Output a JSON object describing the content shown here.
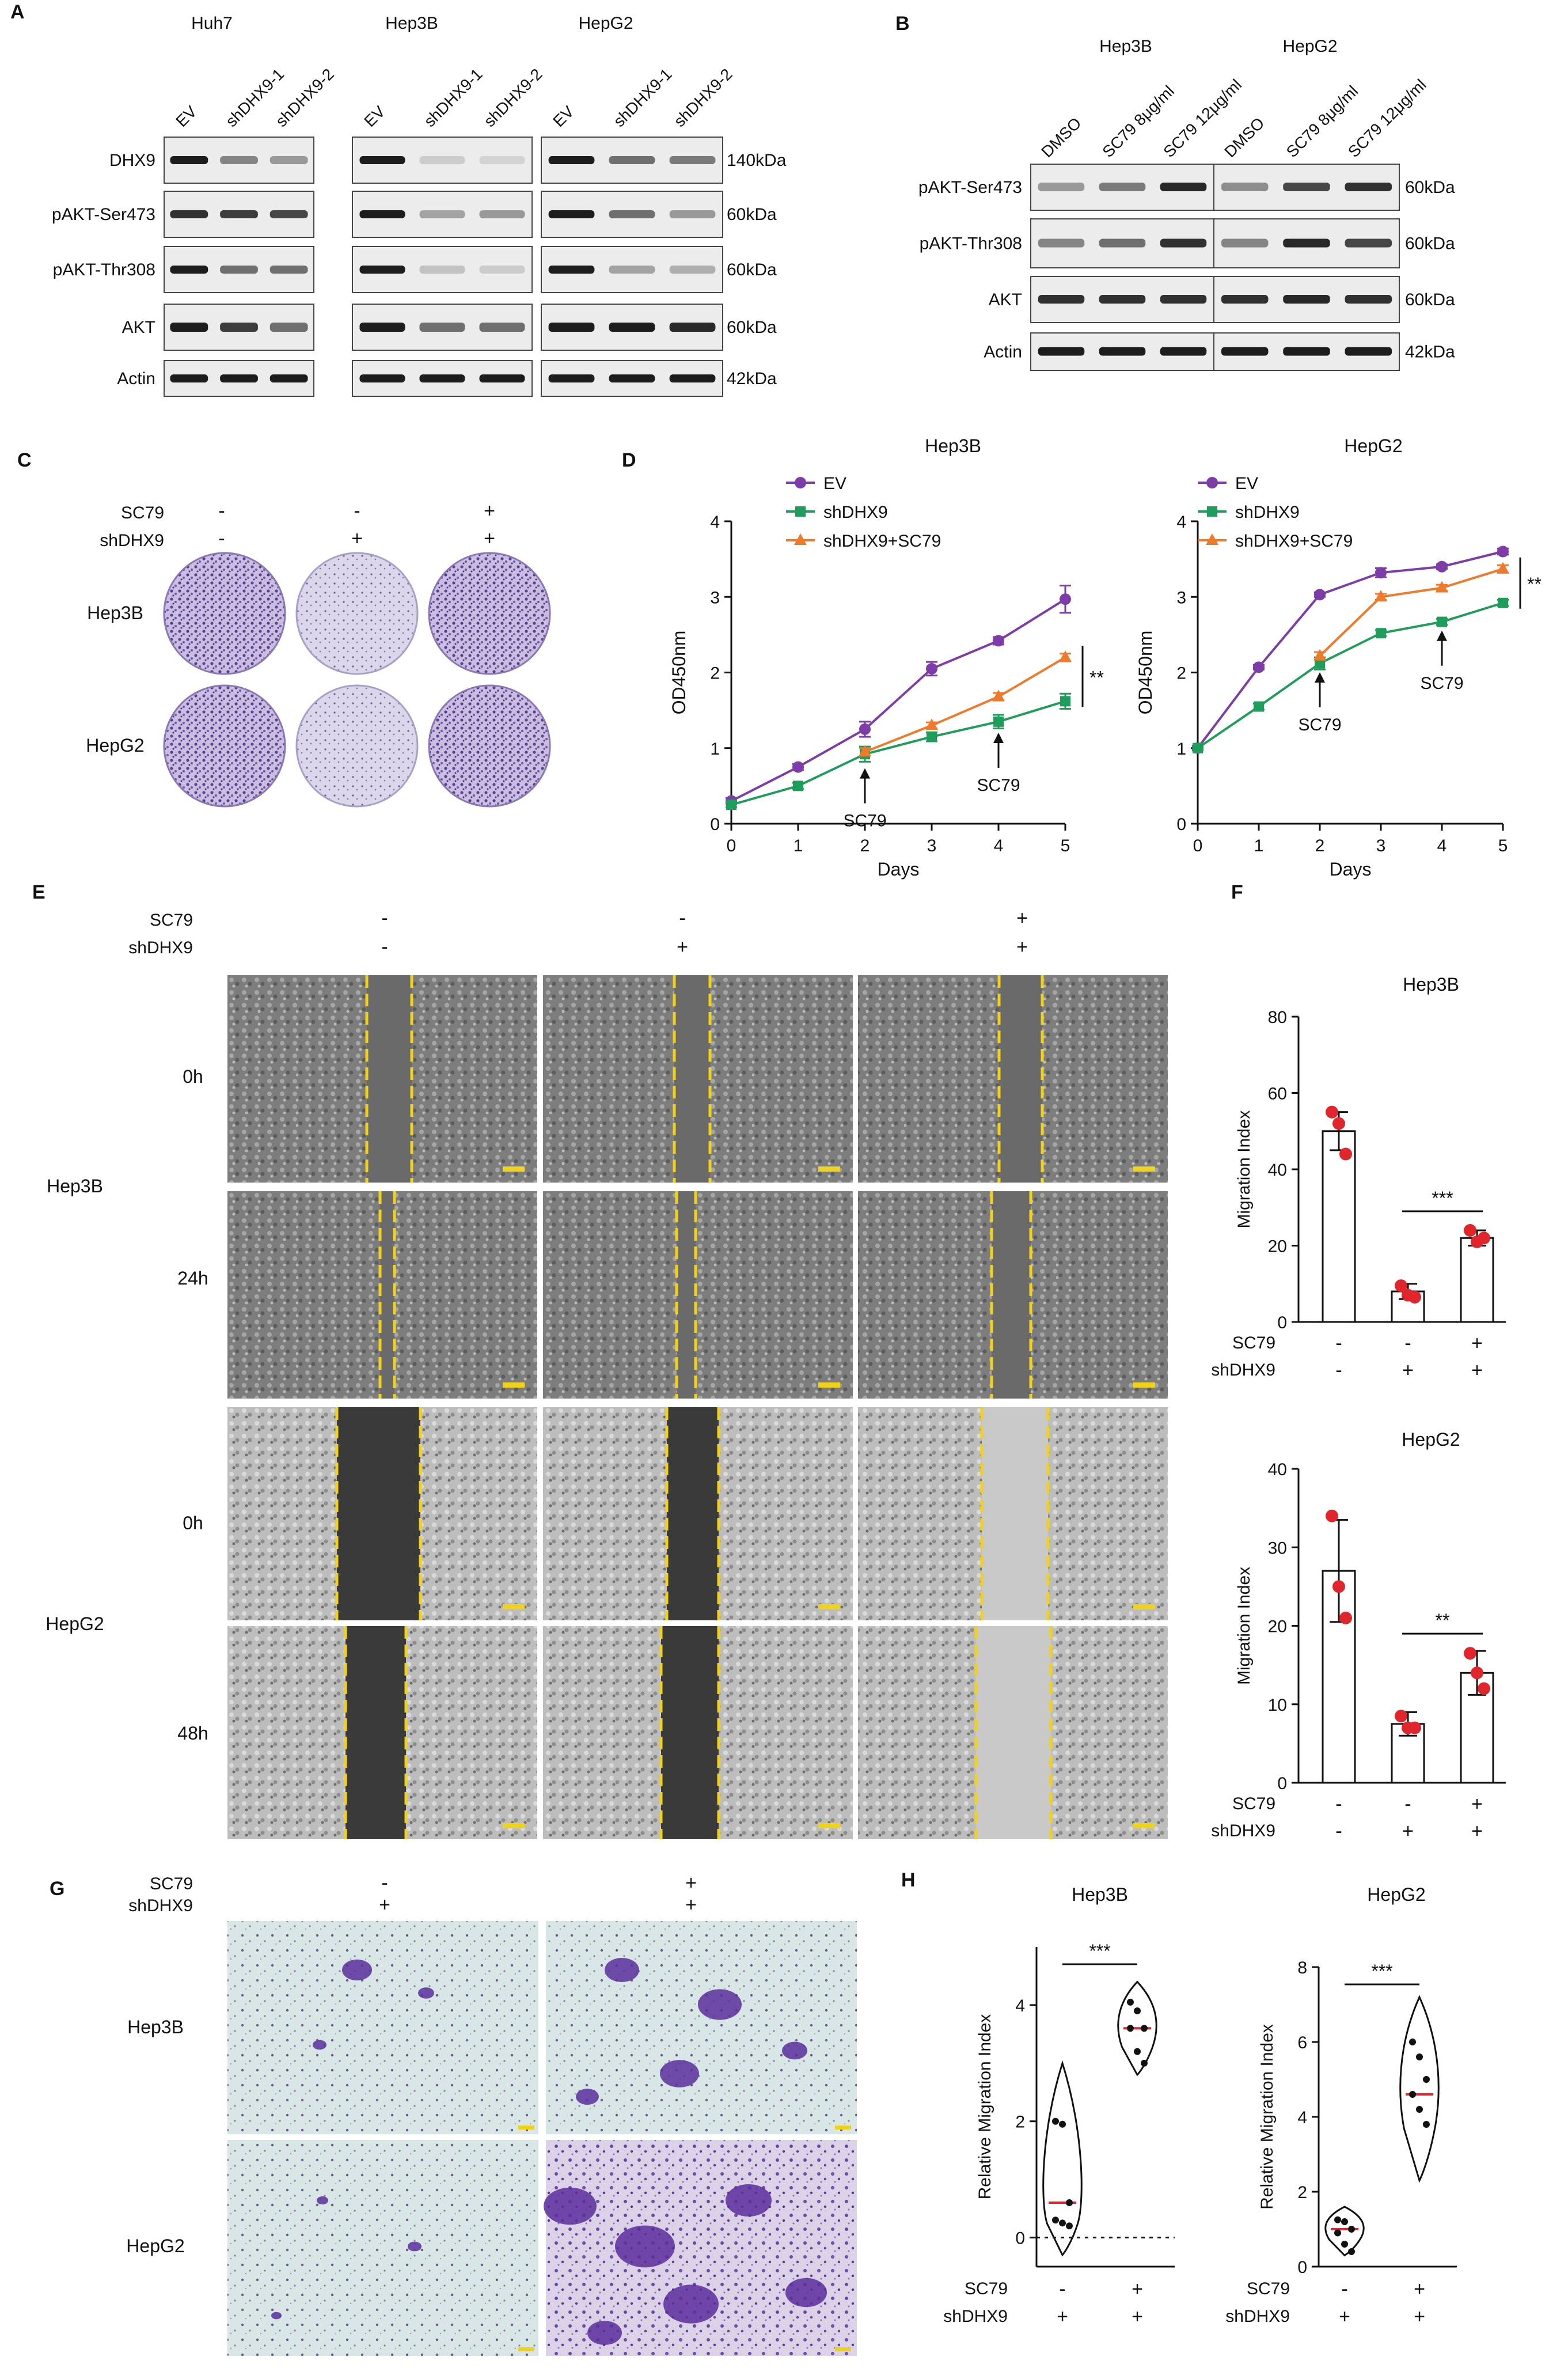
{
  "panel_letters": [
    "A",
    "B",
    "C",
    "D",
    "E",
    "F",
    "G",
    "H"
  ],
  "colors": {
    "ev": "#7E3CA8",
    "sh": "#1E9E5A",
    "shsc": "#F07A2B",
    "dot_red": "#E0262C",
    "yellow": "#F2D11A",
    "blot_bg": "#ececec",
    "band": "#1d1d1d",
    "crystal": "#6b4aa5"
  },
  "panelA": {
    "cell_lines": [
      "Huh7",
      "Hep3B",
      "HepG2"
    ],
    "lanes": [
      "EV",
      "shDHX9-1",
      "shDHX9-2"
    ],
    "rows": [
      "DHX9",
      "pAKT-Ser473",
      "pAKT-Thr308",
      "AKT",
      "Actin"
    ],
    "sizes": [
      "140kDa",
      "60kDa",
      "60kDa",
      "60kDa",
      "42kDa"
    ]
  },
  "panelB": {
    "cell_lines": [
      "Hep3B",
      "HepG2"
    ],
    "lanes": [
      "DMSO",
      "SC79 8μg/ml",
      "SC79 12μg/ml"
    ],
    "rows": [
      "pAKT-Ser473",
      "pAKT-Thr308",
      "AKT",
      "Actin"
    ],
    "sizes": [
      "60kDa",
      "60kDa",
      "60kDa",
      "42kDa"
    ]
  },
  "panelC": {
    "row_labels": [
      "SC79",
      "shDHX9"
    ],
    "signs": [
      [
        "-",
        "-",
        "+"
      ],
      [
        "-",
        "+",
        "+"
      ]
    ],
    "cell_lines": [
      "Hep3B",
      "HepG2"
    ]
  },
  "panelE": {
    "row_labels": [
      "SC79",
      "shDHX9"
    ],
    "signs": [
      [
        "-",
        "-",
        "+"
      ],
      [
        "-",
        "+",
        "+"
      ]
    ],
    "cell_lines": [
      "Hep3B",
      "HepG2"
    ],
    "times": [
      "0h",
      "24h",
      "0h",
      "48h"
    ]
  },
  "panelG": {
    "row_labels": [
      "SC79",
      "shDHX9"
    ],
    "signs": [
      [
        "-",
        "+"
      ],
      [
        "+",
        "+"
      ]
    ],
    "cell_lines": [
      "Hep3B",
      "HepG2"
    ]
  },
  "chart_data": [
    {
      "id": "D-Hep3B",
      "type": "line",
      "title": "Hep3B",
      "xlabel": "Days",
      "ylabel": "OD450nm",
      "x": [
        0,
        1,
        2,
        3,
        4,
        5
      ],
      "xlim": [
        0,
        5
      ],
      "ylim": [
        0,
        4
      ],
      "yticks": [
        0,
        1,
        2,
        3,
        4
      ],
      "series": [
        {
          "name": "EV",
          "marker": "circle",
          "values": [
            0.3,
            0.75,
            1.25,
            2.05,
            2.42,
            2.97
          ],
          "errors": [
            0.04,
            0.04,
            0.1,
            0.09,
            0.05,
            0.18
          ]
        },
        {
          "name": "shDHX9",
          "marker": "square",
          "values": [
            0.25,
            0.5,
            0.92,
            1.15,
            1.35,
            1.62
          ],
          "errors": [
            0.03,
            0.04,
            0.1,
            0.06,
            0.09,
            0.1
          ]
        },
        {
          "name": "shDHX9+SC79",
          "marker": "triangle",
          "values": [
            null,
            null,
            0.95,
            1.3,
            1.68,
            2.2
          ],
          "errors": [
            0,
            0,
            0.05,
            0.04,
            0.05,
            0.05
          ]
        }
      ],
      "annotations": [
        "SC79",
        "SC79",
        "**"
      ]
    },
    {
      "id": "D-HepG2",
      "type": "line",
      "title": "HepG2",
      "xlabel": "Days",
      "ylabel": "OD450nm",
      "x": [
        0,
        1,
        2,
        3,
        4,
        5
      ],
      "xlim": [
        0,
        5
      ],
      "ylim": [
        0,
        4
      ],
      "yticks": [
        0,
        1,
        2,
        3,
        4
      ],
      "series": [
        {
          "name": "EV",
          "marker": "circle",
          "values": [
            1.0,
            2.07,
            3.03,
            3.32,
            3.4,
            3.6
          ],
          "errors": [
            0.03,
            0.03,
            0.03,
            0.06,
            0.03,
            0.04
          ]
        },
        {
          "name": "shDHX9",
          "marker": "square",
          "values": [
            1.0,
            1.55,
            2.12,
            2.52,
            2.67,
            2.92
          ],
          "errors": [
            0.03,
            0.04,
            0.08,
            0.04,
            0.04,
            0.04
          ]
        },
        {
          "name": "shDHX9+SC79",
          "marker": "triangle",
          "values": [
            null,
            null,
            2.22,
            3.0,
            3.12,
            3.37
          ],
          "errors": [
            0,
            0,
            0.05,
            0.04,
            0.04,
            0.05
          ]
        }
      ],
      "annotations": [
        "SC79",
        "SC79",
        "**"
      ]
    },
    {
      "id": "F-Hep3B",
      "type": "bar",
      "title": "Hep3B",
      "ylabel": "Migration Index",
      "ylim": [
        0,
        80
      ],
      "yticks": [
        0,
        20,
        40,
        60,
        80
      ],
      "groups": [
        {
          "SC79": "-",
          "shDHX9": "-",
          "mean": 50,
          "sd": 5,
          "points": [
            55,
            52,
            44
          ]
        },
        {
          "SC79": "-",
          "shDHX9": "+",
          "mean": 8,
          "sd": 2,
          "points": [
            9.5,
            7,
            6.5
          ]
        },
        {
          "SC79": "+",
          "shDHX9": "+",
          "mean": 22,
          "sd": 2,
          "points": [
            24,
            21,
            22
          ]
        }
      ],
      "significance": "***"
    },
    {
      "id": "F-HepG2",
      "type": "bar",
      "title": "HepG2",
      "ylabel": "Migration Index",
      "ylim": [
        0,
        40
      ],
      "yticks": [
        0,
        10,
        20,
        30,
        40
      ],
      "groups": [
        {
          "SC79": "-",
          "shDHX9": "-",
          "mean": 27,
          "sd": 6.5,
          "points": [
            34,
            25,
            21
          ]
        },
        {
          "SC79": "-",
          "shDHX9": "+",
          "mean": 7.5,
          "sd": 1.5,
          "points": [
            8.5,
            7,
            7
          ]
        },
        {
          "SC79": "+",
          "shDHX9": "+",
          "mean": 14,
          "sd": 2.8,
          "points": [
            16.5,
            14,
            12
          ]
        }
      ],
      "significance": "**"
    },
    {
      "id": "H-Hep3B",
      "type": "violin",
      "title": "Hep3B",
      "ylabel": "Relative Migration Index",
      "ylim": [
        -0.5,
        5
      ],
      "yticks": [
        0,
        2,
        4
      ],
      "groups": [
        {
          "SC79": "-",
          "shDHX9": "+",
          "median": 0.6,
          "points": [
            2.0,
            1.95,
            0.6,
            0.3,
            0.25,
            0.2
          ],
          "range": [
            -0.3,
            3.0
          ]
        },
        {
          "SC79": "+",
          "shDHX9": "+",
          "median": 3.6,
          "points": [
            4.05,
            3.9,
            3.6,
            3.6,
            3.2,
            3.0
          ],
          "range": [
            2.8,
            4.4
          ]
        }
      ],
      "significance": "***"
    },
    {
      "id": "H-HepG2",
      "type": "violin",
      "title": "HepG2",
      "ylabel": "Relative Migration Index",
      "ylim": [
        0,
        8
      ],
      "yticks": [
        0,
        2,
        4,
        6,
        8
      ],
      "groups": [
        {
          "SC79": "-",
          "shDHX9": "+",
          "median": 1.0,
          "points": [
            1.25,
            1.2,
            1.0,
            0.9,
            0.6,
            0.4
          ],
          "range": [
            0.3,
            1.6
          ]
        },
        {
          "SC79": "+",
          "shDHX9": "+",
          "median": 4.6,
          "points": [
            6.0,
            5.6,
            5.0,
            4.6,
            4.2,
            3.8
          ],
          "range": [
            2.3,
            7.2
          ]
        }
      ],
      "significance": "***"
    }
  ]
}
